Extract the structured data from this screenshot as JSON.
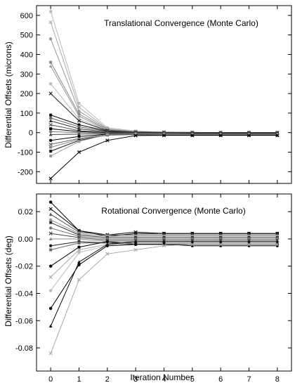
{
  "chart_data": [
    {
      "type": "line",
      "title": "Translational Convergence (Monte Carlo)",
      "xlabel": "",
      "ylabel": "Differential Offsets (microns)",
      "x": [
        0,
        1,
        2,
        3,
        4,
        5,
        6,
        7,
        8
      ],
      "xlim": [
        -0.5,
        8.5
      ],
      "ylim": [
        -260,
        650
      ],
      "xticks": [
        0,
        1,
        2,
        3,
        4,
        5,
        6,
        7,
        8
      ],
      "yticks": [
        -200,
        -100,
        0,
        100,
        200,
        300,
        400,
        500,
        600
      ],
      "grid": false,
      "series": [
        {
          "color": "#bbbbbb",
          "marker": "square",
          "values": [
            620,
            150,
            25,
            8,
            3,
            1,
            0,
            0,
            0
          ]
        },
        {
          "color": "#aaaaaa",
          "marker": "x",
          "values": [
            565,
            130,
            20,
            6,
            2,
            1,
            0,
            0,
            0
          ]
        },
        {
          "color": "#999999",
          "marker": "circle",
          "values": [
            480,
            110,
            18,
            5,
            2,
            1,
            0,
            0,
            0
          ]
        },
        {
          "color": "#888888",
          "marker": "square",
          "values": [
            360,
            95,
            15,
            4,
            2,
            1,
            0,
            0,
            0
          ]
        },
        {
          "color": "#999999",
          "marker": "triangle",
          "values": [
            340,
            85,
            12,
            3,
            2,
            1,
            0,
            0,
            0
          ]
        },
        {
          "color": "#bbbbbb",
          "marker": "circle",
          "values": [
            250,
            70,
            12,
            3,
            1,
            0,
            0,
            0,
            0
          ]
        },
        {
          "color": "#222222",
          "marker": "x",
          "values": [
            200,
            60,
            10,
            3,
            1,
            0,
            0,
            0,
            0
          ]
        },
        {
          "color": "#000000",
          "marker": "circle",
          "values": [
            90,
            40,
            8,
            2,
            1,
            0,
            0,
            0,
            0
          ]
        },
        {
          "color": "#666666",
          "marker": "square",
          "values": [
            75,
            30,
            5,
            2,
            1,
            0,
            0,
            0,
            0
          ]
        },
        {
          "color": "#333333",
          "marker": "triangle",
          "values": [
            60,
            20,
            3,
            1,
            0,
            0,
            0,
            0,
            0
          ]
        },
        {
          "color": "#555555",
          "marker": "x",
          "values": [
            40,
            10,
            0,
            -2,
            -3,
            -3,
            -3,
            -3,
            -3
          ]
        },
        {
          "color": "#000000",
          "marker": "square",
          "values": [
            20,
            5,
            0,
            -4,
            -5,
            -5,
            -5,
            -5,
            -5
          ]
        },
        {
          "color": "#777777",
          "marker": "circle",
          "values": [
            5,
            0,
            -2,
            -5,
            -6,
            -7,
            -7,
            -7,
            -7
          ]
        },
        {
          "color": "#444444",
          "marker": "triangle",
          "values": [
            -10,
            -8,
            -5,
            -8,
            -9,
            -10,
            -10,
            -10,
            -10
          ]
        },
        {
          "color": "#000000",
          "marker": "circle",
          "values": [
            -40,
            -20,
            -8,
            -10,
            -12,
            -13,
            -13,
            -13,
            -13
          ]
        },
        {
          "color": "#666666",
          "marker": "x",
          "values": [
            -60,
            -30,
            -10,
            -10,
            -12,
            -12,
            -12,
            -12,
            -12
          ]
        },
        {
          "color": "#888888",
          "marker": "circle",
          "values": [
            -75,
            -35,
            -10,
            -10,
            -11,
            -11,
            -11,
            -11,
            -11
          ]
        },
        {
          "color": "#111111",
          "marker": "square",
          "values": [
            -95,
            -40,
            -12,
            -10,
            -11,
            -11,
            -11,
            -11,
            -11
          ]
        },
        {
          "color": "#999999",
          "marker": "square",
          "values": [
            -120,
            -45,
            -10,
            -8,
            -9,
            -9,
            -9,
            -9,
            -9
          ]
        },
        {
          "color": "#000000",
          "marker": "x",
          "values": [
            -235,
            -100,
            -40,
            -15,
            -14,
            -14,
            -14,
            -14,
            -14
          ]
        }
      ]
    },
    {
      "type": "line",
      "title": "Rotational Convergence (Monte Carlo)",
      "xlabel": "Iteration Number",
      "ylabel": "Differential Offsets (deg)",
      "x": [
        0,
        1,
        2,
        3,
        4,
        5,
        6,
        7,
        8
      ],
      "xlim": [
        -0.5,
        8.5
      ],
      "xtick_labels": [
        "0",
        "1",
        "2",
        "3",
        "4",
        "5",
        "6",
        "7",
        "8"
      ],
      "ylim": [
        -0.097,
        0.033
      ],
      "xticks": [
        0,
        1,
        2,
        3,
        4,
        5,
        6,
        7,
        8
      ],
      "yticks": [
        -0.08,
        -0.06,
        -0.04,
        -0.02,
        0.0,
        0.02
      ],
      "ytick_labels": [
        "-0.08",
        "-0.06",
        "-0.04",
        "-0.02",
        "0.00",
        "0.02"
      ],
      "grid": false,
      "series": [
        {
          "color": "#000000",
          "marker": "circle",
          "values": [
            0.027,
            0.006,
            0.002,
            0.004,
            0.004,
            0.004,
            0.004,
            0.004,
            0.004
          ]
        },
        {
          "color": "#111111",
          "marker": "x",
          "values": [
            0.022,
            0.006,
            0.003,
            0.005,
            0.004,
            0.004,
            0.004,
            0.004,
            0.004
          ]
        },
        {
          "color": "#555555",
          "marker": "triangle",
          "values": [
            0.018,
            0.005,
            0.003,
            0.003,
            0.003,
            0.003,
            0.003,
            0.003,
            0.003
          ]
        },
        {
          "color": "#999999",
          "marker": "square",
          "values": [
            0.014,
            0.004,
            0.002,
            0.002,
            0.002,
            0.002,
            0.002,
            0.002,
            0.002
          ]
        },
        {
          "color": "#333333",
          "marker": "square",
          "values": [
            0.012,
            0.003,
            0.001,
            0.001,
            0.001,
            0.001,
            0.001,
            0.001,
            0.001
          ]
        },
        {
          "color": "#777777",
          "marker": "circle",
          "values": [
            0.008,
            0.002,
            0.0,
            0.0,
            0.0,
            0.0,
            0.0,
            0.0,
            0.0
          ]
        },
        {
          "color": "#444444",
          "marker": "x",
          "values": [
            0.004,
            0.001,
            -0.001,
            -0.001,
            -0.001,
            -0.001,
            -0.001,
            -0.001,
            -0.001
          ]
        },
        {
          "color": "#888888",
          "marker": "triangle",
          "values": [
            0.0,
            0.0,
            -0.002,
            -0.002,
            -0.002,
            -0.002,
            -0.002,
            -0.002,
            -0.002
          ]
        },
        {
          "color": "#222222",
          "marker": "circle",
          "values": [
            -0.005,
            -0.002,
            -0.003,
            -0.003,
            -0.003,
            -0.003,
            -0.003,
            -0.003,
            -0.003
          ]
        },
        {
          "color": "#666666",
          "marker": "square",
          "values": [
            -0.008,
            -0.003,
            -0.003,
            -0.004,
            -0.004,
            -0.004,
            -0.004,
            -0.004,
            -0.004
          ]
        },
        {
          "color": "#000000",
          "marker": "circle",
          "values": [
            -0.02,
            -0.006,
            -0.002,
            -0.004,
            -0.004,
            -0.005,
            -0.005,
            -0.005,
            -0.005
          ]
        },
        {
          "color": "#aaaaaa",
          "marker": "x",
          "values": [
            -0.028,
            -0.008,
            -0.004,
            -0.003,
            -0.003,
            -0.003,
            -0.003,
            -0.003,
            -0.003
          ]
        },
        {
          "color": "#bbbbbb",
          "marker": "circle",
          "values": [
            -0.038,
            -0.01,
            -0.005,
            -0.004,
            -0.004,
            -0.004,
            -0.004,
            -0.004,
            -0.004
          ]
        },
        {
          "color": "#000000",
          "marker": "circle",
          "values": [
            -0.051,
            -0.019,
            -0.005,
            -0.004,
            -0.004,
            -0.004,
            -0.004,
            -0.004,
            -0.004
          ]
        },
        {
          "color": "#111111",
          "marker": "triangle",
          "values": [
            -0.064,
            -0.017,
            -0.004,
            -0.002,
            -0.002,
            -0.002,
            -0.002,
            -0.002,
            -0.002
          ]
        },
        {
          "color": "#aaaaaa",
          "marker": "x",
          "values": [
            -0.084,
            -0.03,
            -0.011,
            -0.008,
            -0.005,
            -0.004,
            -0.004,
            -0.004,
            -0.004
          ]
        }
      ]
    }
  ]
}
